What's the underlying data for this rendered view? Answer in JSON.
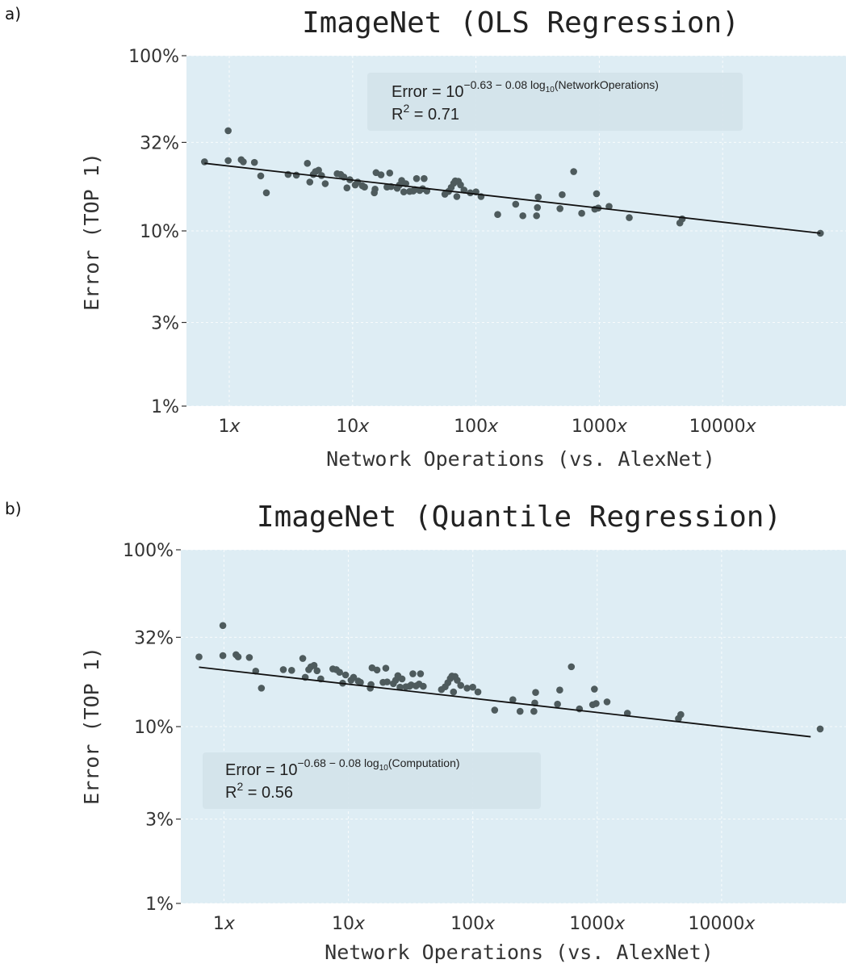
{
  "chart_data": [
    {
      "panel": "a)",
      "type": "scatter",
      "title": "ImageNet (OLS Regression)",
      "xlabel": "Network Operations (vs. AlexNet)",
      "ylabel": "Error (TOP 1)",
      "xscale": "log",
      "yscale": "log",
      "xlim": [
        0.45,
        100000
      ],
      "ylim": [
        0.01,
        1.0
      ],
      "x_ticks": [
        1,
        10,
        100,
        1000,
        10000
      ],
      "x_tick_labels": [
        "1x",
        "10x",
        "100x",
        "1000x",
        "10000x"
      ],
      "y_ticks": [
        0.01,
        0.03,
        0.1,
        0.32,
        1.0
      ],
      "y_tick_labels": [
        "1%",
        "3%",
        "10%",
        "32%",
        "100%"
      ],
      "grid": true,
      "annotation": {
        "lead": "Error = 10",
        "exponent": "−0.63 − 0.08 log",
        "subscript": "10",
        "exp_tail": "(NetworkOperations)",
        "r2_lead": "R",
        "r2_sup": "2",
        "r2_tail": " = 0.71",
        "placement": "top-center"
      },
      "fit_line": {
        "intercept_log10": -0.63,
        "slope": -0.08,
        "x_range": [
          0.63,
          62000
        ]
      },
      "points": [
        {
          "x": 0.63,
          "y": 0.248
        },
        {
          "x": 0.98,
          "y": 0.373
        },
        {
          "x": 0.98,
          "y": 0.252
        },
        {
          "x": 1.25,
          "y": 0.255
        },
        {
          "x": 1.3,
          "y": 0.248
        },
        {
          "x": 1.6,
          "y": 0.246
        },
        {
          "x": 1.8,
          "y": 0.206
        },
        {
          "x": 2.0,
          "y": 0.165
        },
        {
          "x": 3.0,
          "y": 0.21
        },
        {
          "x": 3.5,
          "y": 0.208
        },
        {
          "x": 4.3,
          "y": 0.243
        },
        {
          "x": 4.5,
          "y": 0.19
        },
        {
          "x": 4.8,
          "y": 0.21
        },
        {
          "x": 5.0,
          "y": 0.218
        },
        {
          "x": 5.3,
          "y": 0.222
        },
        {
          "x": 5.6,
          "y": 0.207
        },
        {
          "x": 6.0,
          "y": 0.186
        },
        {
          "x": 7.5,
          "y": 0.212
        },
        {
          "x": 8.0,
          "y": 0.21
        },
        {
          "x": 8.5,
          "y": 0.203
        },
        {
          "x": 9.0,
          "y": 0.176
        },
        {
          "x": 9.5,
          "y": 0.196
        },
        {
          "x": 10.5,
          "y": 0.183
        },
        {
          "x": 11.0,
          "y": 0.19
        },
        {
          "x": 12.0,
          "y": 0.181
        },
        {
          "x": 12.5,
          "y": 0.178
        },
        {
          "x": 15.0,
          "y": 0.165
        },
        {
          "x": 15.2,
          "y": 0.173
        },
        {
          "x": 15.5,
          "y": 0.215
        },
        {
          "x": 17.0,
          "y": 0.209
        },
        {
          "x": 19.0,
          "y": 0.178
        },
        {
          "x": 20.0,
          "y": 0.214
        },
        {
          "x": 20.5,
          "y": 0.179
        },
        {
          "x": 23.0,
          "y": 0.175
        },
        {
          "x": 24.0,
          "y": 0.183
        },
        {
          "x": 25.0,
          "y": 0.194
        },
        {
          "x": 26.0,
          "y": 0.167
        },
        {
          "x": 27.0,
          "y": 0.186
        },
        {
          "x": 29.0,
          "y": 0.168
        },
        {
          "x": 31.0,
          "y": 0.169
        },
        {
          "x": 32.0,
          "y": 0.172
        },
        {
          "x": 33.0,
          "y": 0.199
        },
        {
          "x": 35.0,
          "y": 0.17
        },
        {
          "x": 37.0,
          "y": 0.174
        },
        {
          "x": 38.0,
          "y": 0.199
        },
        {
          "x": 40.0,
          "y": 0.169
        },
        {
          "x": 56.0,
          "y": 0.162
        },
        {
          "x": 60.0,
          "y": 0.168
        },
        {
          "x": 63.0,
          "y": 0.177
        },
        {
          "x": 66.0,
          "y": 0.187
        },
        {
          "x": 68.0,
          "y": 0.193
        },
        {
          "x": 70.0,
          "y": 0.157
        },
        {
          "x": 72.0,
          "y": 0.192
        },
        {
          "x": 75.0,
          "y": 0.183
        },
        {
          "x": 80.0,
          "y": 0.171
        },
        {
          "x": 90.0,
          "y": 0.165
        },
        {
          "x": 100.0,
          "y": 0.167
        },
        {
          "x": 110.0,
          "y": 0.157
        },
        {
          "x": 150.0,
          "y": 0.124
        },
        {
          "x": 210.0,
          "y": 0.142
        },
        {
          "x": 240.0,
          "y": 0.122
        },
        {
          "x": 310.0,
          "y": 0.122
        },
        {
          "x": 315.0,
          "y": 0.136
        },
        {
          "x": 320.0,
          "y": 0.156
        },
        {
          "x": 480.0,
          "y": 0.134
        },
        {
          "x": 500.0,
          "y": 0.161
        },
        {
          "x": 620.0,
          "y": 0.218
        },
        {
          "x": 720.0,
          "y": 0.126
        },
        {
          "x": 920.0,
          "y": 0.133
        },
        {
          "x": 950.0,
          "y": 0.163
        },
        {
          "x": 980.0,
          "y": 0.135
        },
        {
          "x": 1200.0,
          "y": 0.138
        },
        {
          "x": 1750.0,
          "y": 0.119
        },
        {
          "x": 4500.0,
          "y": 0.111
        },
        {
          "x": 4700.0,
          "y": 0.117
        },
        {
          "x": 62000.0,
          "y": 0.097
        }
      ]
    },
    {
      "panel": "b)",
      "type": "scatter",
      "title": "ImageNet (Quantile Regression)",
      "xlabel": "Network Operations (vs. AlexNet)",
      "ylabel": "Error (TOP 1)",
      "xscale": "log",
      "yscale": "log",
      "xlim": [
        0.45,
        100000
      ],
      "ylim": [
        0.01,
        1.0
      ],
      "x_ticks": [
        1,
        10,
        100,
        1000,
        10000
      ],
      "x_tick_labels": [
        "1x",
        "10x",
        "100x",
        "1000x",
        "10000x"
      ],
      "y_ticks": [
        0.01,
        0.03,
        0.1,
        0.32,
        1.0
      ],
      "y_tick_labels": [
        "1%",
        "3%",
        "10%",
        "32%",
        "100%"
      ],
      "grid": true,
      "annotation": {
        "lead": "Error = 10",
        "exponent": "−0.68 − 0.08 log",
        "subscript": "10",
        "exp_tail": "(Computation)",
        "r2_lead": "R",
        "r2_sup": "2",
        "r2_tail": " = 0.56",
        "placement": "lower-left"
      },
      "fit_line": {
        "intercept_log10": -0.68,
        "slope": -0.08,
        "x_range": [
          0.63,
          52000
        ]
      },
      "points": [
        {
          "x": 0.63,
          "y": 0.248
        },
        {
          "x": 0.98,
          "y": 0.373
        },
        {
          "x": 0.98,
          "y": 0.252
        },
        {
          "x": 1.25,
          "y": 0.255
        },
        {
          "x": 1.3,
          "y": 0.248
        },
        {
          "x": 1.6,
          "y": 0.246
        },
        {
          "x": 1.8,
          "y": 0.206
        },
        {
          "x": 2.0,
          "y": 0.165
        },
        {
          "x": 3.0,
          "y": 0.21
        },
        {
          "x": 3.5,
          "y": 0.208
        },
        {
          "x": 4.3,
          "y": 0.243
        },
        {
          "x": 4.5,
          "y": 0.19
        },
        {
          "x": 4.8,
          "y": 0.21
        },
        {
          "x": 5.0,
          "y": 0.218
        },
        {
          "x": 5.3,
          "y": 0.222
        },
        {
          "x": 5.6,
          "y": 0.207
        },
        {
          "x": 6.0,
          "y": 0.186
        },
        {
          "x": 7.5,
          "y": 0.212
        },
        {
          "x": 8.0,
          "y": 0.21
        },
        {
          "x": 8.5,
          "y": 0.203
        },
        {
          "x": 9.0,
          "y": 0.176
        },
        {
          "x": 9.5,
          "y": 0.196
        },
        {
          "x": 10.5,
          "y": 0.183
        },
        {
          "x": 11.0,
          "y": 0.19
        },
        {
          "x": 12.0,
          "y": 0.181
        },
        {
          "x": 12.5,
          "y": 0.178
        },
        {
          "x": 15.0,
          "y": 0.165
        },
        {
          "x": 15.2,
          "y": 0.173
        },
        {
          "x": 15.5,
          "y": 0.215
        },
        {
          "x": 17.0,
          "y": 0.209
        },
        {
          "x": 19.0,
          "y": 0.178
        },
        {
          "x": 20.0,
          "y": 0.214
        },
        {
          "x": 20.5,
          "y": 0.179
        },
        {
          "x": 23.0,
          "y": 0.175
        },
        {
          "x": 24.0,
          "y": 0.183
        },
        {
          "x": 25.0,
          "y": 0.194
        },
        {
          "x": 26.0,
          "y": 0.167
        },
        {
          "x": 27.0,
          "y": 0.186
        },
        {
          "x": 29.0,
          "y": 0.168
        },
        {
          "x": 31.0,
          "y": 0.169
        },
        {
          "x": 32.0,
          "y": 0.172
        },
        {
          "x": 33.0,
          "y": 0.199
        },
        {
          "x": 35.0,
          "y": 0.17
        },
        {
          "x": 37.0,
          "y": 0.174
        },
        {
          "x": 38.0,
          "y": 0.199
        },
        {
          "x": 40.0,
          "y": 0.169
        },
        {
          "x": 56.0,
          "y": 0.162
        },
        {
          "x": 60.0,
          "y": 0.168
        },
        {
          "x": 63.0,
          "y": 0.177
        },
        {
          "x": 66.0,
          "y": 0.187
        },
        {
          "x": 68.0,
          "y": 0.193
        },
        {
          "x": 70.0,
          "y": 0.157
        },
        {
          "x": 72.0,
          "y": 0.192
        },
        {
          "x": 75.0,
          "y": 0.183
        },
        {
          "x": 80.0,
          "y": 0.171
        },
        {
          "x": 90.0,
          "y": 0.165
        },
        {
          "x": 100.0,
          "y": 0.167
        },
        {
          "x": 110.0,
          "y": 0.157
        },
        {
          "x": 150.0,
          "y": 0.124
        },
        {
          "x": 210.0,
          "y": 0.142
        },
        {
          "x": 240.0,
          "y": 0.122
        },
        {
          "x": 310.0,
          "y": 0.122
        },
        {
          "x": 315.0,
          "y": 0.136
        },
        {
          "x": 320.0,
          "y": 0.156
        },
        {
          "x": 480.0,
          "y": 0.134
        },
        {
          "x": 500.0,
          "y": 0.161
        },
        {
          "x": 620.0,
          "y": 0.218
        },
        {
          "x": 720.0,
          "y": 0.126
        },
        {
          "x": 920.0,
          "y": 0.133
        },
        {
          "x": 950.0,
          "y": 0.163
        },
        {
          "x": 980.0,
          "y": 0.135
        },
        {
          "x": 1200.0,
          "y": 0.138
        },
        {
          "x": 1750.0,
          "y": 0.119
        },
        {
          "x": 4500.0,
          "y": 0.111
        },
        {
          "x": 4700.0,
          "y": 0.117
        },
        {
          "x": 62000.0,
          "y": 0.097
        }
      ]
    }
  ],
  "colors": {
    "plot_background": "#deedf4",
    "point": "#4e5b5d",
    "fit_line": "#111111",
    "grid": "#ffffff",
    "annotation_box": "#d3e2ea"
  }
}
